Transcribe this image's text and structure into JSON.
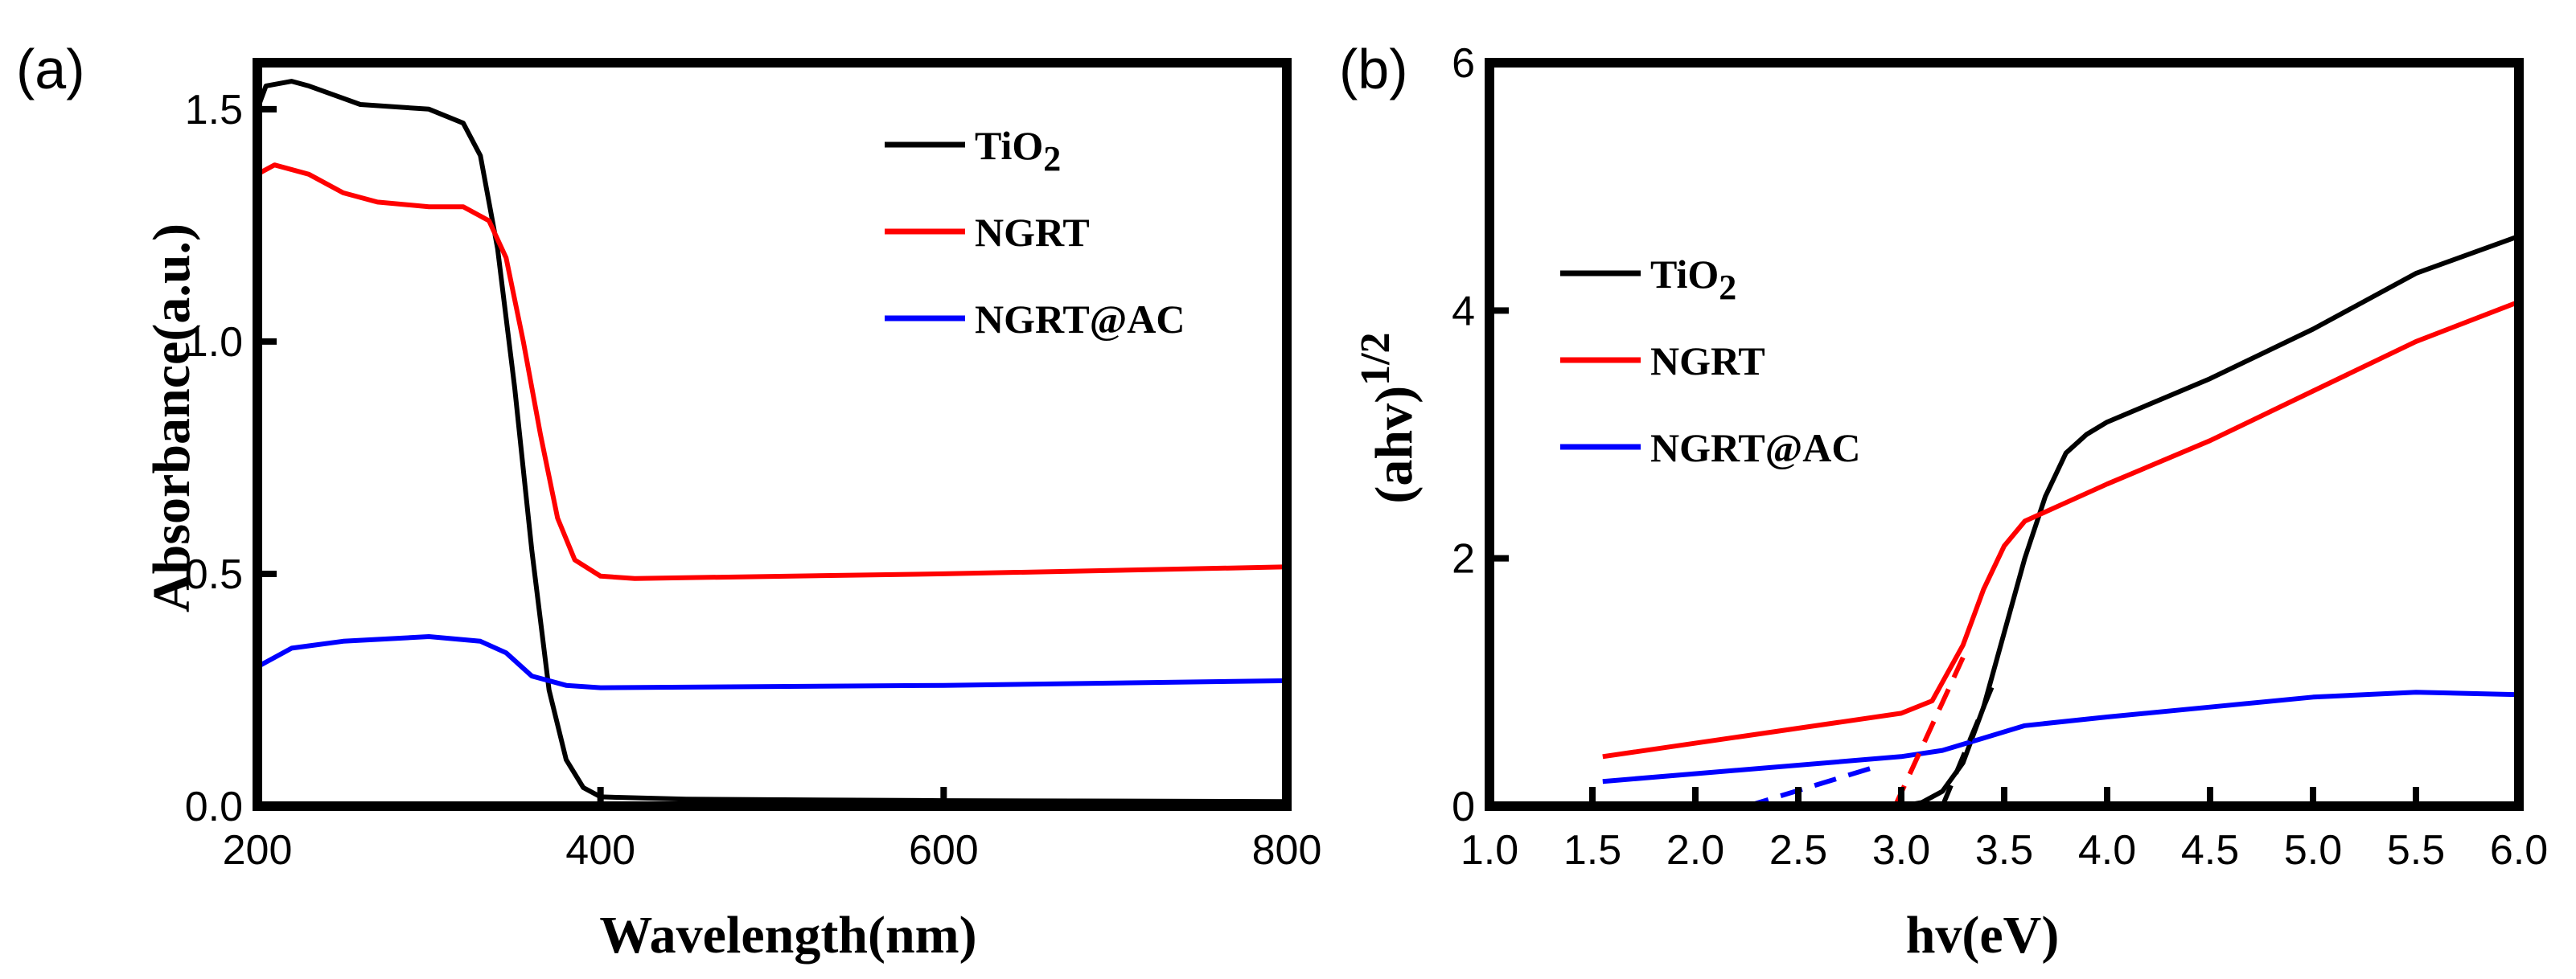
{
  "chart_data": [
    {
      "type": "line",
      "panel_label": "(a)",
      "xlabel": "Wavelength(nm)",
      "ylabel": "Absorbance(a.u.)",
      "xlim": [
        200,
        800
      ],
      "ylim": [
        0,
        1.6
      ],
      "xticks": [
        "200",
        "400",
        "600",
        "800"
      ],
      "xtick_values": [
        200,
        400,
        600,
        800
      ],
      "yticks": [
        "0.0",
        "0.5",
        "1.0",
        "1.5"
      ],
      "ytick_values": [
        0,
        0.5,
        1.0,
        1.5
      ],
      "grid": false,
      "legend_position": "top-right",
      "series": [
        {
          "name": "TiO2",
          "label_main": "TiO",
          "label_sub": "2",
          "color": "#000000",
          "x": [
            200,
            205,
            220,
            230,
            260,
            300,
            320,
            330,
            340,
            350,
            360,
            370,
            380,
            390,
            400,
            450,
            600,
            800
          ],
          "y": [
            1.5,
            1.55,
            1.56,
            1.55,
            1.51,
            1.5,
            1.47,
            1.4,
            1.2,
            0.9,
            0.55,
            0.25,
            0.1,
            0.04,
            0.02,
            0.015,
            0.012,
            0.01
          ]
        },
        {
          "name": "NGRT",
          "label_main": "NGRT",
          "color": "#ff0000",
          "x": [
            200,
            210,
            230,
            250,
            270,
            300,
            320,
            335,
            345,
            355,
            365,
            375,
            385,
            400,
            420,
            600,
            800
          ],
          "y": [
            1.36,
            1.38,
            1.36,
            1.32,
            1.3,
            1.29,
            1.29,
            1.26,
            1.18,
            1.0,
            0.8,
            0.62,
            0.53,
            0.495,
            0.49,
            0.5,
            0.515
          ]
        },
        {
          "name": "NGRT@AC",
          "label_main": "NGRT@AC",
          "color": "#0000ff",
          "x": [
            200,
            220,
            250,
            300,
            330,
            345,
            360,
            380,
            400,
            600,
            800
          ],
          "y": [
            0.3,
            0.34,
            0.355,
            0.365,
            0.355,
            0.33,
            0.28,
            0.26,
            0.255,
            0.26,
            0.27
          ]
        }
      ]
    },
    {
      "type": "line",
      "panel_label": "(b)",
      "xlabel": "hv(eV)",
      "ylabel_main": "(ahv)",
      "ylabel_sup": "1/2",
      "xlim": [
        1.0,
        6.0
      ],
      "ylim": [
        0,
        6
      ],
      "xticks": [
        "1.0",
        "1.5",
        "2.0",
        "2.5",
        "3.0",
        "3.5",
        "4.0",
        "4.5",
        "5.0",
        "5.5",
        "6.0"
      ],
      "xtick_values": [
        1.0,
        1.5,
        2.0,
        2.5,
        3.0,
        3.5,
        4.0,
        4.5,
        5.0,
        5.5,
        6.0
      ],
      "yticks": [
        "0",
        "2",
        "4",
        "6"
      ],
      "ytick_values": [
        0,
        2,
        4,
        6
      ],
      "grid": false,
      "legend_position": "upper-left",
      "series": [
        {
          "name": "TiO2",
          "label_main": "TiO",
          "label_sub": "2",
          "color": "#000000",
          "x": [
            1.6,
            3.0,
            3.1,
            3.2,
            3.3,
            3.4,
            3.5,
            3.6,
            3.7,
            3.8,
            3.9,
            4.0,
            4.5,
            5.0,
            5.5,
            6.0
          ],
          "y": [
            0,
            0,
            0.03,
            0.12,
            0.35,
            0.8,
            1.4,
            2.0,
            2.5,
            2.85,
            3.0,
            3.1,
            3.45,
            3.85,
            4.3,
            4.6
          ]
        },
        {
          "name": "NGRT",
          "label_main": "NGRT",
          "color": "#ff0000",
          "x": [
            1.55,
            3.0,
            3.15,
            3.3,
            3.4,
            3.5,
            3.6,
            3.8,
            4.0,
            4.5,
            5.0,
            5.5,
            6.0
          ],
          "y": [
            0.4,
            0.75,
            0.85,
            1.3,
            1.75,
            2.1,
            2.3,
            2.45,
            2.6,
            2.95,
            3.35,
            3.75,
            4.07
          ]
        },
        {
          "name": "NGRT@AC",
          "label_main": "NGRT@AC",
          "color": "#0000ff",
          "x": [
            1.55,
            3.0,
            3.2,
            3.4,
            3.6,
            4.0,
            4.5,
            5.0,
            5.5,
            6.0
          ],
          "y": [
            0.2,
            0.4,
            0.45,
            0.55,
            0.65,
            0.72,
            0.8,
            0.88,
            0.92,
            0.9
          ]
        }
      ],
      "fit_lines": [
        {
          "series": "TiO2",
          "color": "#000000",
          "x": [
            3.2,
            3.45
          ],
          "y": [
            0,
            1.0
          ]
        },
        {
          "series": "NGRT",
          "color": "#ff0000",
          "x": [
            2.97,
            3.3
          ],
          "y": [
            0,
            1.2
          ]
        },
        {
          "series": "NGRT@AC",
          "color": "#0000ff",
          "x": [
            2.25,
            2.9
          ],
          "y": [
            0,
            0.33
          ]
        }
      ]
    }
  ]
}
